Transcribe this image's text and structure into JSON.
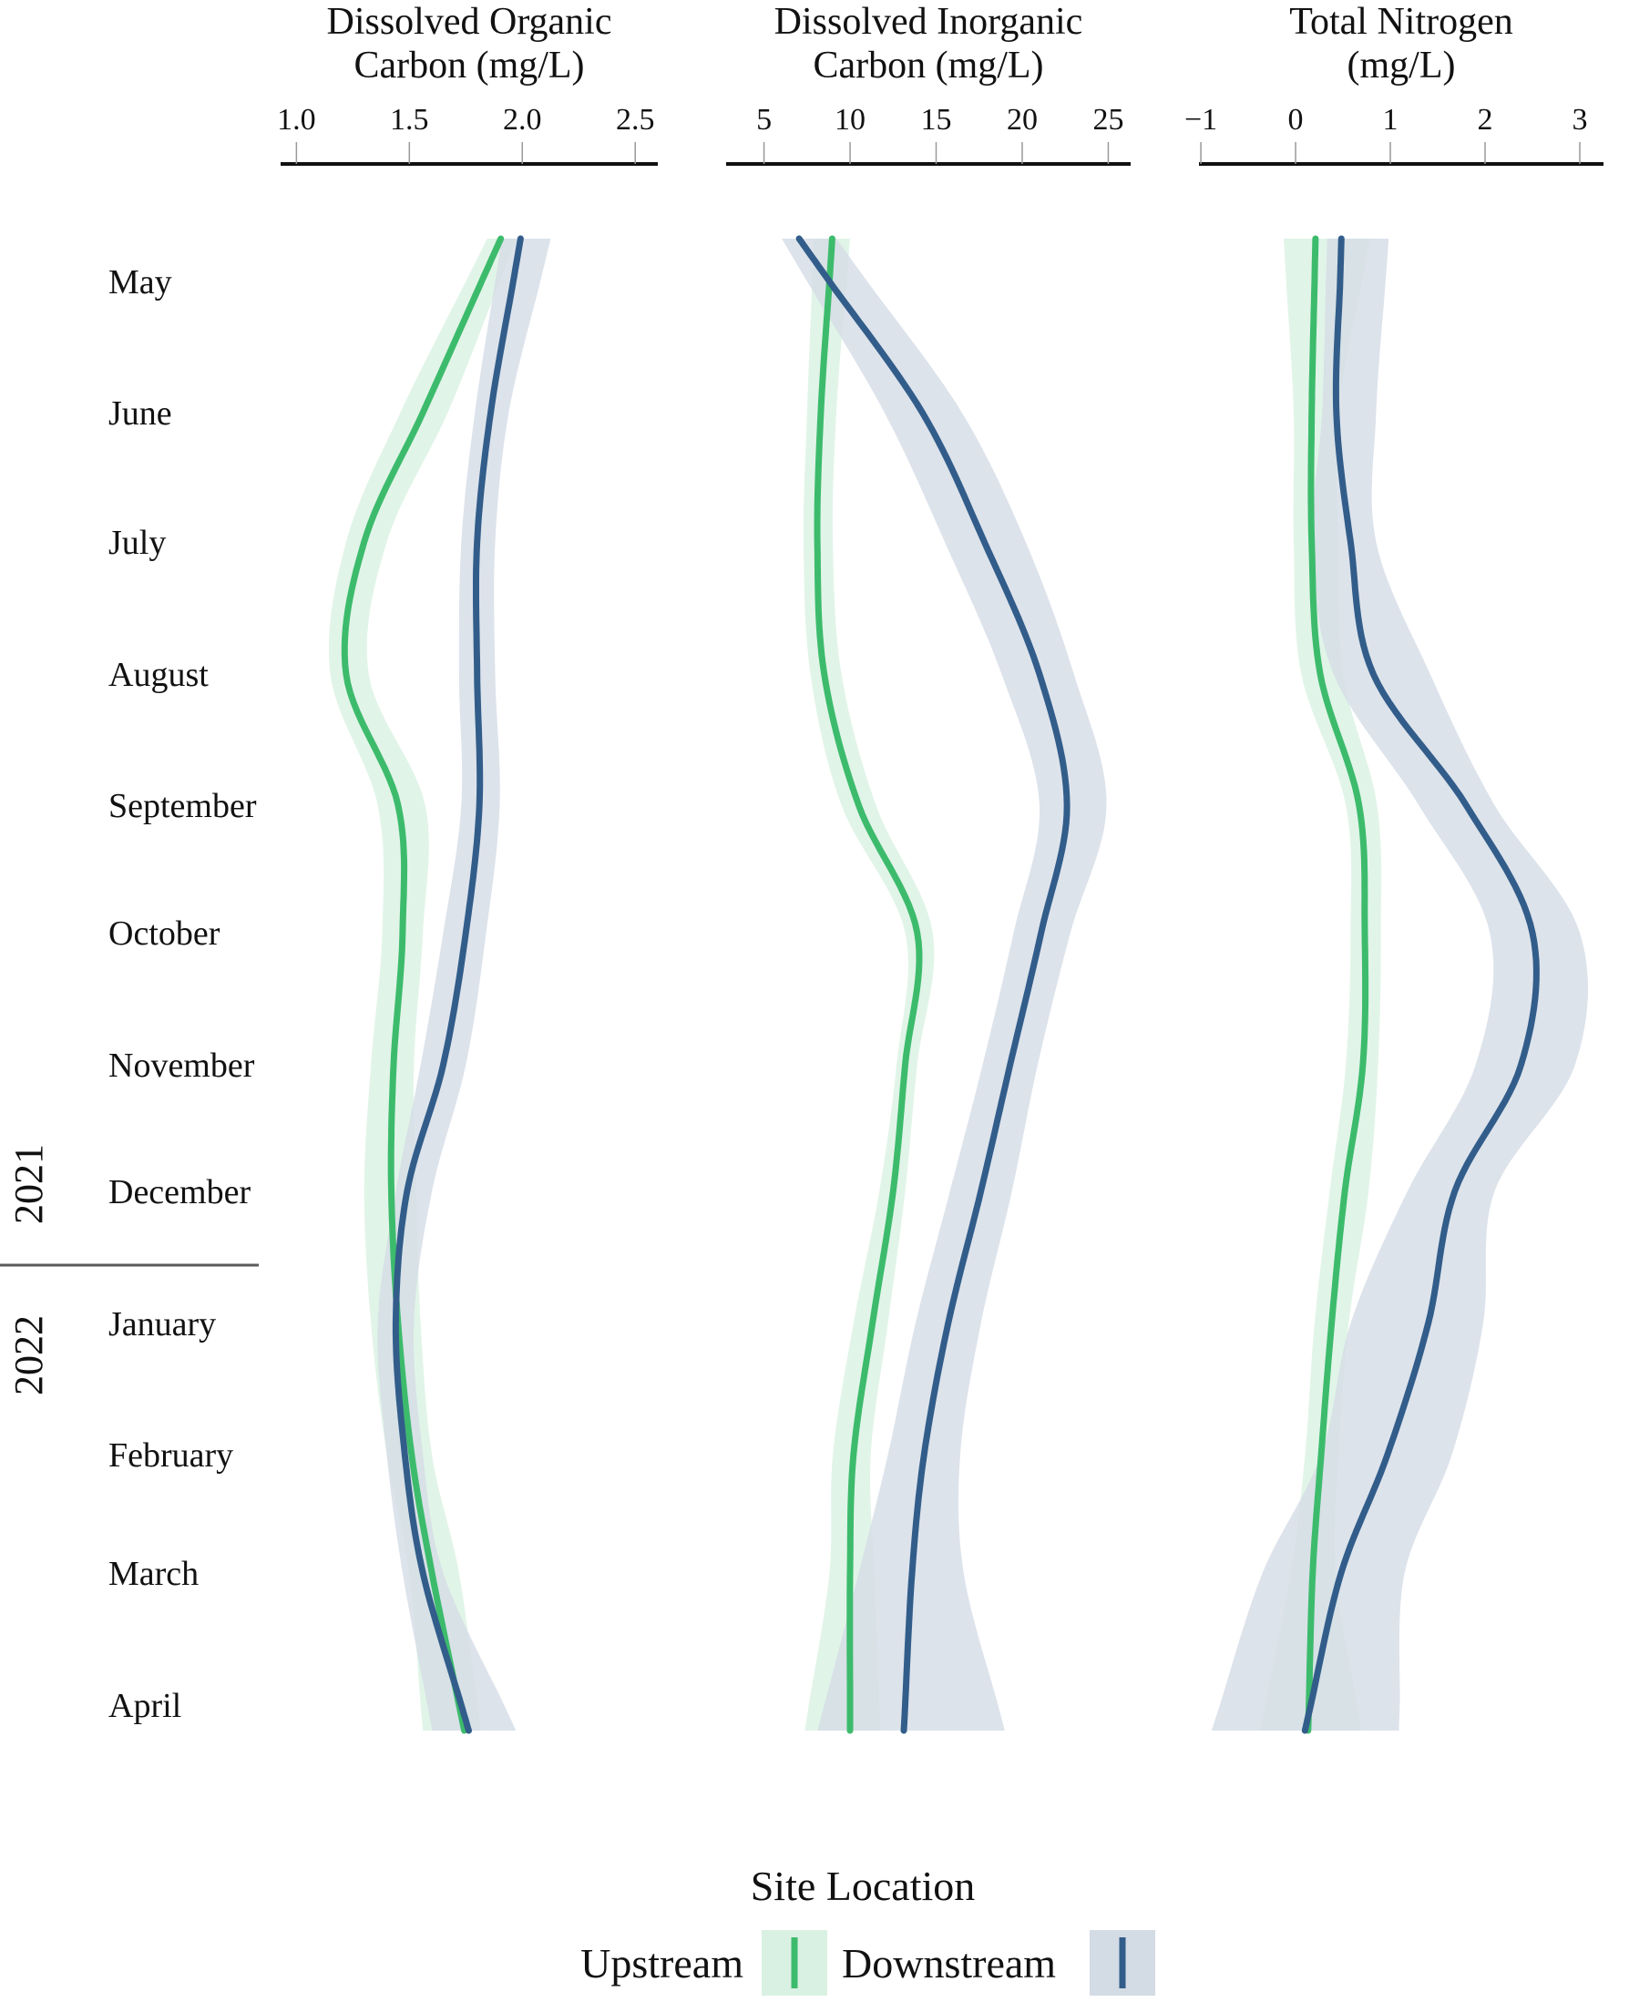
{
  "chart_data": {
    "type": "line",
    "orientation": "vertical-time",
    "months": [
      "May",
      "June",
      "July",
      "August",
      "September",
      "October",
      "November",
      "December",
      "January",
      "February",
      "March",
      "April"
    ],
    "years": [
      "2021",
      "2022"
    ],
    "legend": {
      "title": "Site Location",
      "items": [
        {
          "label": "Upstream",
          "color": "#3dbb6c",
          "band": "#d9f1e2"
        },
        {
          "label": "Downstream",
          "color": "#325d8a",
          "band": "#d3dbe5"
        }
      ],
      "placement": "bottom-center"
    },
    "panels": [
      {
        "title_lines": [
          "Dissolved Organic",
          "Carbon (mg/L)"
        ],
        "ticks": [
          1.0,
          1.5,
          2.0,
          2.5
        ],
        "tick_labels": [
          "1.0",
          "1.5",
          "2.0",
          "2.5"
        ],
        "xlim": [
          0.93,
          2.6
        ],
        "series": [
          {
            "name": "Upstream",
            "values": [
              1.82,
              1.56,
              1.3,
              1.22,
              1.45,
              1.47,
              1.43,
              1.42,
              1.45,
              1.51,
              1.6,
              1.72
            ],
            "lower": [
              1.75,
              1.46,
              1.22,
              1.15,
              1.36,
              1.38,
              1.33,
              1.3,
              1.33,
              1.4,
              1.5,
              1.55
            ],
            "upper": [
              1.9,
              1.67,
              1.4,
              1.32,
              1.57,
              1.56,
              1.52,
              1.53,
              1.55,
              1.6,
              1.72,
              1.8
            ]
          },
          {
            "name": "Downstream",
            "values": [
              1.96,
              1.86,
              1.8,
              1.8,
              1.81,
              1.75,
              1.65,
              1.49,
              1.44,
              1.48,
              1.56,
              1.73
            ],
            "lower": [
              1.88,
              1.79,
              1.73,
              1.72,
              1.73,
              1.65,
              1.55,
              1.44,
              1.36,
              1.4,
              1.47,
              1.58
            ],
            "upper": [
              2.08,
              1.94,
              1.88,
              1.88,
              1.9,
              1.84,
              1.75,
              1.6,
              1.52,
              1.56,
              1.65,
              1.92
            ]
          }
        ]
      },
      {
        "title_lines": [
          "Dissolved Inorganic",
          "Carbon (mg/L)"
        ],
        "ticks": [
          5,
          10,
          15,
          20,
          25
        ],
        "tick_labels": [
          "5",
          "10",
          "15",
          "20",
          "25"
        ],
        "xlim": [
          2.8,
          26.3
        ],
        "series": [
          {
            "name": "Upstream",
            "values": [
              8.8,
              8.3,
              8.1,
              8.5,
              10.5,
              13.9,
              13.2,
              12.5,
              11.3,
              10.2,
              10.0,
              10.0
            ],
            "lower": [
              7.8,
              7.5,
              7.3,
              7.7,
              9.5,
              13.2,
              12.7,
              11.7,
              10.2,
              9.0,
              8.8,
              7.6
            ],
            "upper": [
              9.8,
              9.2,
              9.0,
              9.5,
              11.5,
              14.8,
              13.9,
              13.2,
              12.2,
              11.2,
              11.4,
              11.7
            ]
          },
          {
            "name": "Downstream",
            "values": [
              8.8,
              14.2,
              17.8,
              21.0,
              22.6,
              21.1,
              19.3,
              17.6,
              15.7,
              14.3,
              13.6,
              13.2
            ],
            "lower": [
              7.5,
              12.0,
              15.5,
              18.8,
              21.0,
              19.5,
              17.7,
              15.8,
              13.8,
              12.2,
              10.5,
              8.5
            ],
            "upper": [
              11.0,
              16.5,
              20.2,
              23.0,
              24.9,
              22.8,
              20.9,
              19.4,
              17.6,
              16.4,
              16.6,
              18.6
            ]
          }
        ]
      },
      {
        "title_lines": [
          "Total Nitrogen",
          "(mg/L)"
        ],
        "ticks": [
          -1,
          0,
          1,
          2,
          3
        ],
        "tick_labels": [
          "−1",
          "0",
          "1",
          "2",
          "3"
        ],
        "xlim": [
          -1.02,
          3.25
        ],
        "series": [
          {
            "name": "Upstream",
            "values": [
              0.2,
              0.17,
              0.17,
              0.26,
              0.67,
              0.73,
              0.71,
              0.52,
              0.38,
              0.27,
              0.18,
              0.14
            ],
            "lower": [
              -0.1,
              -0.02,
              -0.02,
              0.06,
              0.53,
              0.58,
              0.53,
              0.36,
              0.2,
              0.1,
              -0.05,
              -0.32
            ],
            "upper": [
              0.7,
              0.45,
              0.45,
              0.5,
              0.86,
              0.9,
              0.87,
              0.77,
              0.56,
              0.45,
              0.42,
              0.65
            ]
          },
          {
            "name": "Downstream",
            "values": [
              0.47,
              0.43,
              0.58,
              0.82,
              1.8,
              2.5,
              2.38,
              1.68,
              1.4,
              0.97,
              0.48,
              0.16
            ],
            "lower": [
              0.32,
              0.28,
              0.18,
              0.4,
              1.3,
              2.05,
              1.9,
              1.18,
              0.58,
              0.27,
              -0.35,
              -0.8
            ],
            "upper": [
              0.95,
              0.85,
              0.85,
              1.42,
              2.1,
              3.0,
              2.95,
              2.1,
              1.98,
              1.65,
              1.15,
              1.1
            ]
          }
        ]
      }
    ]
  }
}
